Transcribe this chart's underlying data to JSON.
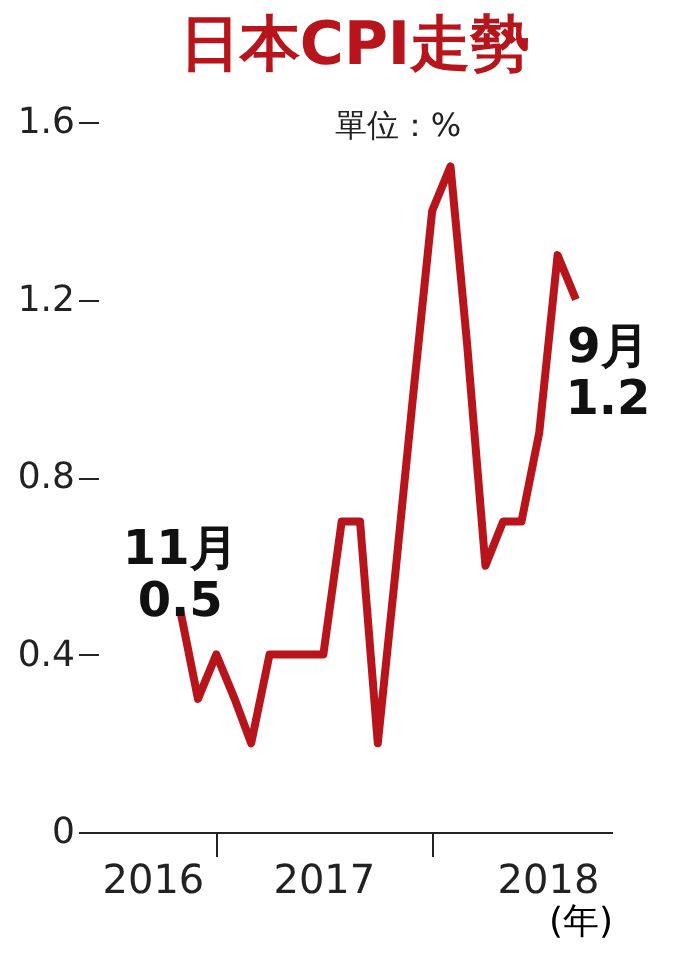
{
  "chart_data": {
    "type": "line",
    "title": "日本CPI走勢",
    "xlabel": "(年)",
    "x": [
      "2016-11",
      "2016-12",
      "2017-01",
      "2017-02",
      "2017-03",
      "2017-04",
      "2017-05",
      "2017-06",
      "2017-07",
      "2017-08",
      "2017-09",
      "2017-10",
      "2017-11",
      "2017-12",
      "2018-01",
      "2018-02",
      "2018-03",
      "2018-04",
      "2018-05",
      "2018-06",
      "2018-07",
      "2018-08",
      "2018-09"
    ],
    "series": [
      {
        "color": "#b8141c",
        "values": [
          0.5,
          0.3,
          0.4,
          0.3,
          0.2,
          0.4,
          0.4,
          0.4,
          0.4,
          0.7,
          0.7,
          0.2,
          0.6,
          1.0,
          1.4,
          1.5,
          1.1,
          0.6,
          0.7,
          0.7,
          0.9,
          1.3,
          1.2
        ]
      }
    ],
    "xlim": [
      "2016-06-15",
      "2018-11-01"
    ],
    "xticks": [
      {
        "value": "2016-09-15",
        "label": "2016"
      },
      {
        "value": "2017-01",
        "label": null
      },
      {
        "value": "2017-07",
        "label": "2017"
      },
      {
        "value": "2018-01",
        "label": null
      },
      {
        "value": "2018-07-15",
        "label": "2018"
      }
    ],
    "ylim": [
      0,
      1.6
    ],
    "yticks": [
      0,
      0.4,
      0.8,
      1.2,
      1.6
    ],
    "grid": false,
    "marker": "none",
    "line_style": "solid",
    "annotations": [
      "單位：%",
      {
        "text": "11月 0.5",
        "x": "2016-11",
        "y": 0.5
      },
      {
        "text": "9月 1.2",
        "x": "2018-09",
        "y": 1.2
      }
    ]
  }
}
